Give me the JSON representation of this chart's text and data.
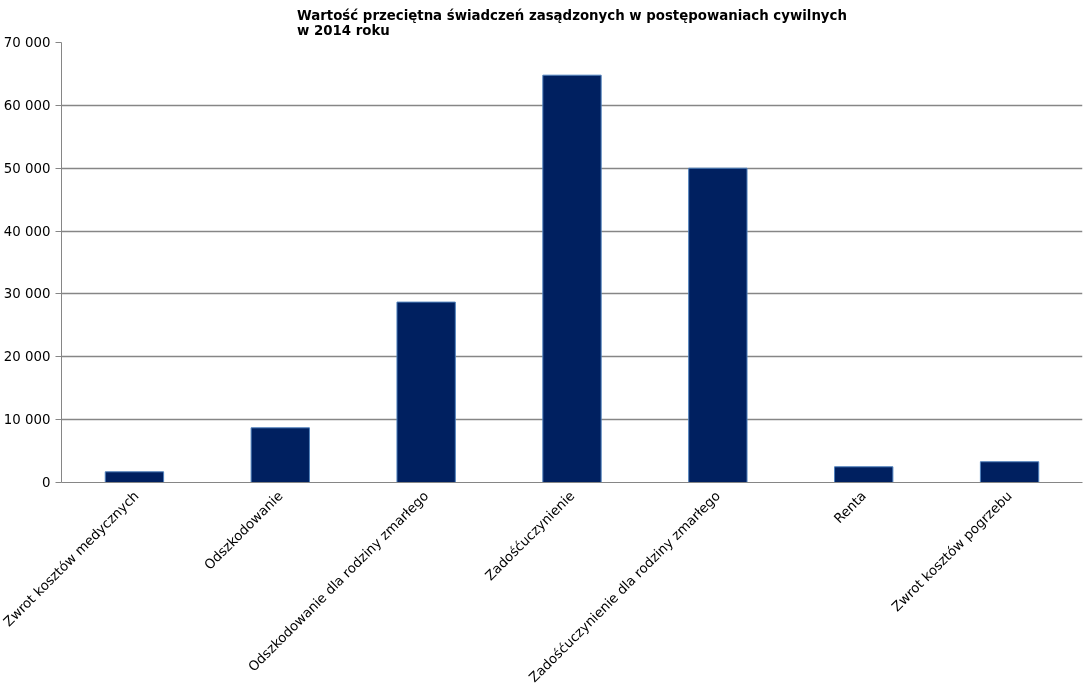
{
  "chart_data": {
    "type": "bar",
    "title": "Wartość przeciętna świadczeń zasądzonych w postępowaniach cywilnych\nw 2014 roku",
    "categories": [
      "Zwrot kosztów medycznych",
      "Odszkodowanie",
      "Odszkodowanie dla rodziny zmarłego",
      "Zadośćuczynienie",
      "Zadośćuczynienie dla rodziny zmarłego",
      "Renta",
      "Zwrot kosztów pogrzebu"
    ],
    "values": [
      1700,
      8700,
      28700,
      64800,
      50000,
      2500,
      3300
    ],
    "color": "#002060",
    "ylim": [
      0,
      70000
    ],
    "yticks": [
      {
        "value": 0,
        "label": "0"
      },
      {
        "value": 10000,
        "label": "10 000"
      },
      {
        "value": 20000,
        "label": "20 000"
      },
      {
        "value": 30000,
        "label": "30 000"
      },
      {
        "value": 40000,
        "label": "40 000"
      },
      {
        "value": 50000,
        "label": "50 000"
      },
      {
        "value": 60000,
        "label": "60 000"
      },
      {
        "value": 70000,
        "label": "70 000"
      }
    ],
    "grid": "y"
  }
}
